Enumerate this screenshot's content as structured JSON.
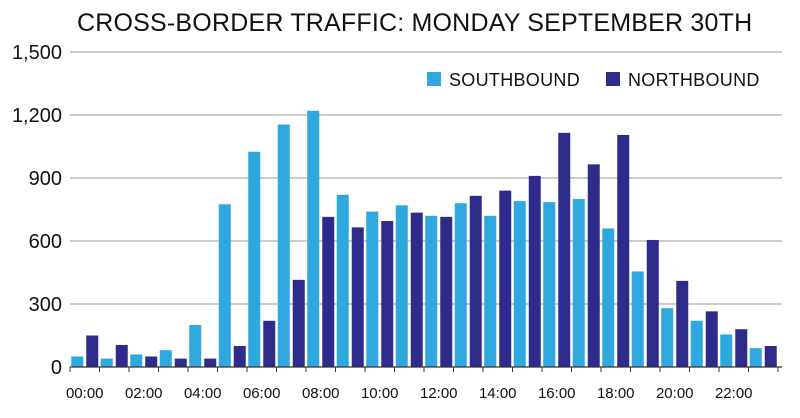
{
  "chart_data": {
    "type": "bar",
    "title": "CROSS-BORDER TRAFFIC: MONDAY SEPTEMBER 30TH",
    "xlabel": "",
    "ylabel": "",
    "ylim": [
      0,
      1500
    ],
    "y_ticks": [
      "0",
      "300",
      "600",
      "900",
      "1,200",
      "1,500"
    ],
    "y_tick_values": [
      0,
      300,
      600,
      900,
      1200,
      1500
    ],
    "grid": true,
    "legend_position": "top-right",
    "categories": [
      "00:00",
      "01:00",
      "02:00",
      "03:00",
      "04:00",
      "05:00",
      "06:00",
      "07:00",
      "08:00",
      "09:00",
      "10:00",
      "11:00",
      "12:00",
      "13:00",
      "14:00",
      "15:00",
      "16:00",
      "17:00",
      "18:00",
      "19:00",
      "20:00",
      "21:00",
      "22:00",
      "23:00"
    ],
    "x_tick_labels": [
      "00:00",
      "",
      "02:00",
      "",
      "04:00",
      "",
      "06:00",
      "",
      "08:00",
      "",
      "10:00",
      "",
      "12:00",
      "",
      "14:00",
      "",
      "16:00",
      "",
      "18:00",
      "",
      "20:00",
      "",
      "22:00",
      ""
    ],
    "series": [
      {
        "name": "SOUTHBOUND",
        "color": "#2ea8df",
        "values": [
          50,
          40,
          60,
          80,
          200,
          775,
          1025,
          1155,
          1220,
          820,
          740,
          770,
          720,
          780,
          720,
          790,
          785,
          800,
          660,
          455,
          280,
          220,
          155,
          90
        ]
      },
      {
        "name": "NORTHBOUND",
        "color": "#2e2b8a",
        "values": [
          150,
          105,
          50,
          40,
          40,
          100,
          220,
          415,
          715,
          665,
          695,
          735,
          715,
          815,
          840,
          910,
          1115,
          965,
          1105,
          605,
          410,
          265,
          180,
          100
        ]
      }
    ]
  }
}
